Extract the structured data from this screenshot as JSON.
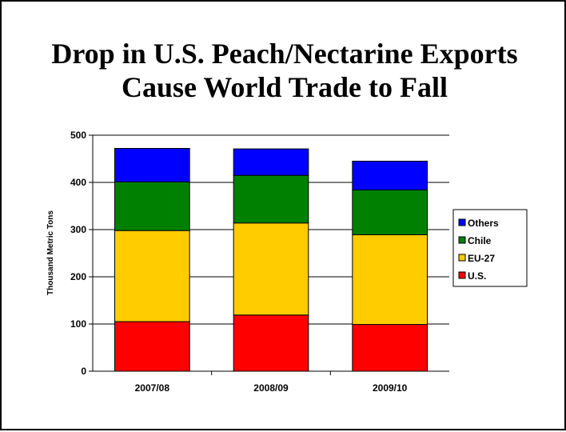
{
  "slide": {
    "title_line1": "Drop in U.S. Peach/Nectarine Exports",
    "title_line2": "Cause World Trade to Fall"
  },
  "chart_data": {
    "type": "bar",
    "stacked": true,
    "categories": [
      "2007/08",
      "2008/09",
      "2009/10"
    ],
    "series": [
      {
        "name": "U.S.",
        "color": "#ff0000",
        "values": [
          105,
          119,
          99
        ]
      },
      {
        "name": "EU-27",
        "color": "#ffcc00",
        "values": [
          193,
          195,
          190
        ]
      },
      {
        "name": "Chile",
        "color": "#008000",
        "values": [
          103,
          101,
          95
        ]
      },
      {
        "name": "Others",
        "color": "#0000ff",
        "values": [
          71,
          56,
          61
        ]
      }
    ],
    "ylabel": "Thousand Metric Tons",
    "xlabel": "",
    "ylim": [
      0,
      500
    ],
    "yticks": [
      0,
      100,
      200,
      300,
      400,
      500
    ],
    "grid": true,
    "legend": "right"
  }
}
